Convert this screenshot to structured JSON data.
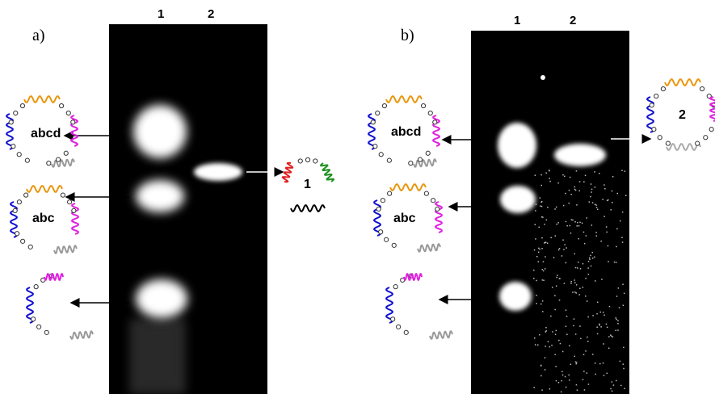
{
  "panels": [
    {
      "label": "a)",
      "lanes": [
        "1",
        "2"
      ],
      "structures": [
        "abcd",
        "abc",
        "1"
      ]
    },
    {
      "label": "b)",
      "lanes": [
        "1",
        "2"
      ],
      "structures": [
        "abcd",
        "abc",
        "2"
      ]
    }
  ]
}
